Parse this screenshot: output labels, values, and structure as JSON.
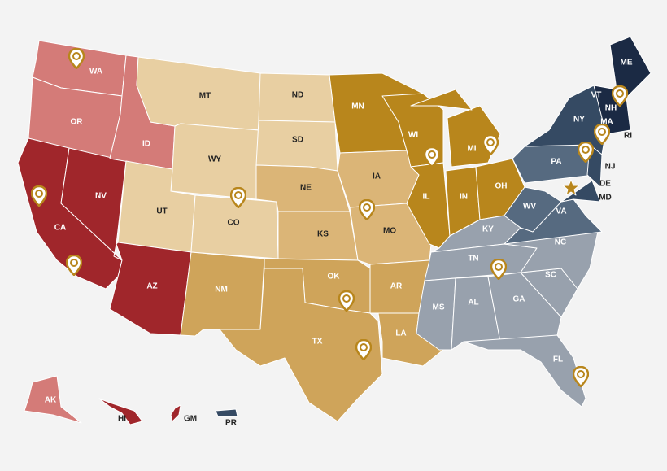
{
  "states": [
    "WA",
    "OR",
    "CA",
    "NV",
    "ID",
    "MT",
    "WY",
    "UT",
    "CO",
    "AZ",
    "NM",
    "ND",
    "SD",
    "NE",
    "KS",
    "OK",
    "TX",
    "MN",
    "IA",
    "MO",
    "AR",
    "LA",
    "WI",
    "IL",
    "MI",
    "IN",
    "OH",
    "KY",
    "TN",
    "MS",
    "AL",
    "GA",
    "FL",
    "SC",
    "NC",
    "VA",
    "WV",
    "PA",
    "NY",
    "NJ",
    "DE",
    "MD",
    "VT",
    "NH",
    "ME",
    "MA",
    "RI"
  ],
  "territories": [
    "AK",
    "HI",
    "GM",
    "PR"
  ]
}
